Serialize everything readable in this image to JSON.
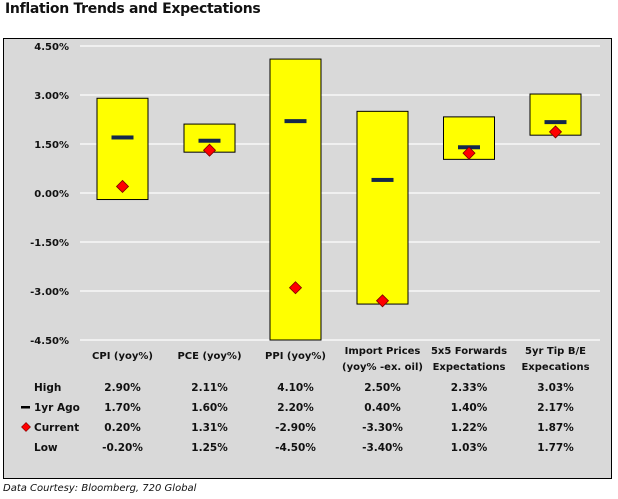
{
  "title": "Inflation Trends and Expectations",
  "footer": "Data Courtesy: Bloomberg, 720 Global",
  "colors": {
    "box_fill": "#ffff00",
    "box_stroke": "#000000",
    "year_ago_marker": "#14284b",
    "current_marker": "#ff0000",
    "plot_bg": "#d9d9d9",
    "gridline": "#ffffff"
  },
  "chart_data": {
    "type": "floating-bar",
    "title": "Inflation Trends and Expectations",
    "ylim": [
      -4.5,
      4.5
    ],
    "yticks": [
      4.5,
      3.0,
      1.5,
      0.0,
      -1.5,
      -3.0,
      -4.5
    ],
    "ytick_labels": [
      "4.50%",
      "3.00%",
      "1.50%",
      "0.00%",
      "-1.50%",
      "-3.00%",
      "-4.50%"
    ],
    "grid": true,
    "categories": [
      [
        "CPI (yoy%)"
      ],
      [
        "PCE (yoy%)"
      ],
      [
        "PPI (yoy%)"
      ],
      [
        "Import Prices",
        "(yoy% -ex. oil)"
      ],
      [
        "5x5 Forwards",
        "Expectations"
      ],
      [
        "5yr Tip B/E",
        "Expecations"
      ]
    ],
    "series": [
      {
        "name": "High",
        "marker": "box-top",
        "values": [
          2.9,
          2.11,
          4.1,
          2.5,
          2.33,
          3.03
        ],
        "labels": [
          "2.90%",
          "2.11%",
          "4.10%",
          "2.50%",
          "2.33%",
          "3.03%"
        ]
      },
      {
        "name": "1yr Ago",
        "marker": "dash",
        "values": [
          1.7,
          1.6,
          2.2,
          0.4,
          1.4,
          2.17
        ],
        "labels": [
          "1.70%",
          "1.60%",
          "2.20%",
          "0.40%",
          "1.40%",
          "2.17%"
        ]
      },
      {
        "name": "Current",
        "marker": "diamond",
        "values": [
          0.2,
          1.31,
          -2.9,
          -3.3,
          1.22,
          1.87
        ],
        "labels": [
          "0.20%",
          "1.31%",
          "-2.90%",
          "-3.30%",
          "1.22%",
          "1.87%"
        ]
      },
      {
        "name": "Low",
        "marker": "box-bottom",
        "values": [
          -0.2,
          1.25,
          -4.5,
          -3.4,
          1.03,
          1.77
        ],
        "labels": [
          "-0.20%",
          "1.25%",
          "-4.50%",
          "-3.40%",
          "1.03%",
          "1.77%"
        ]
      }
    ]
  }
}
